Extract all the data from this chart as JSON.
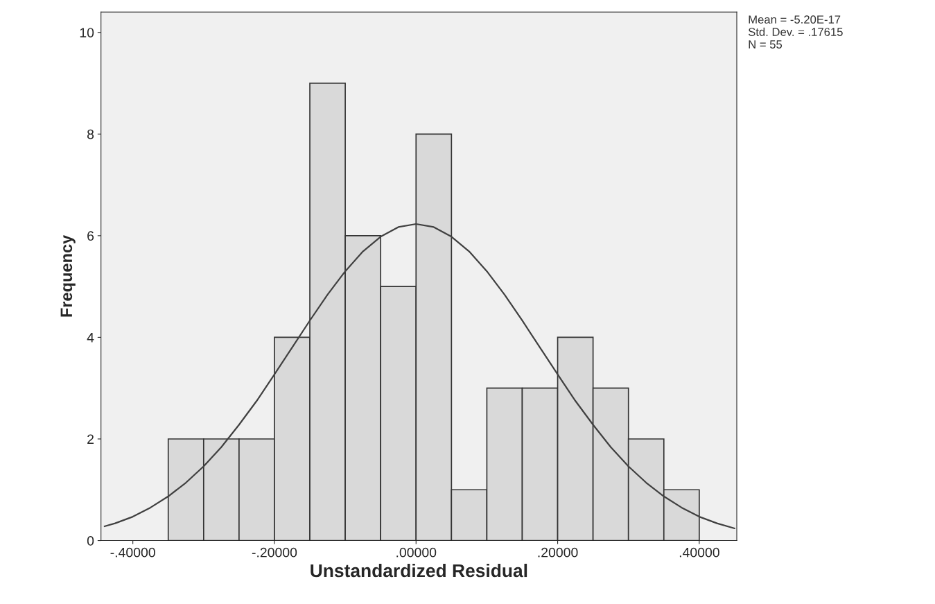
{
  "chart_data": {
    "type": "histogram",
    "xlabel": "Unstandardized Residual",
    "ylabel": "Frequency",
    "bins": [
      -0.35,
      -0.3,
      -0.25,
      -0.2,
      -0.15,
      -0.1,
      -0.05,
      0.0,
      0.05,
      0.1,
      0.15,
      0.2,
      0.25,
      0.3,
      0.35,
      0.4
    ],
    "values": [
      2,
      2,
      2,
      4,
      9,
      6,
      5,
      8,
      1,
      3,
      3,
      4,
      3,
      2,
      1
    ],
    "color": "#d9d9d9",
    "series": [
      {
        "type": "line",
        "color": "#404040",
        "x": [
          -0.44,
          -0.425,
          -0.4,
          -0.375,
          -0.35,
          -0.325,
          -0.3,
          -0.275,
          -0.25,
          -0.225,
          -0.2,
          -0.175,
          -0.15,
          -0.125,
          -0.1,
          -0.075,
          -0.05,
          -0.025,
          0.0,
          0.025,
          0.05,
          0.075,
          0.1,
          0.125,
          0.15,
          0.175,
          0.2,
          0.225,
          0.25,
          0.275,
          0.3,
          0.325,
          0.35,
          0.375,
          0.4,
          0.425,
          0.45
        ],
        "values": [
          0.28,
          0.34,
          0.47,
          0.65,
          0.87,
          1.14,
          1.46,
          1.84,
          2.28,
          2.75,
          3.27,
          3.8,
          4.33,
          4.84,
          5.3,
          5.69,
          5.98,
          6.17,
          6.23,
          6.17,
          5.98,
          5.69,
          5.3,
          4.84,
          4.33,
          3.8,
          3.27,
          2.75,
          2.28,
          1.84,
          1.46,
          1.14,
          0.87,
          0.65,
          0.47,
          0.34,
          0.24
        ]
      }
    ],
    "xlim": [
      -0.445,
      0.453
    ],
    "ylim": [
      0,
      10.4
    ],
    "xticks": [
      {
        "value": -0.4,
        "label": "-.40000"
      },
      {
        "value": -0.2,
        "label": "-.20000"
      },
      {
        "value": 0.0,
        "label": ".00000"
      },
      {
        "value": 0.2,
        "label": ".20000"
      },
      {
        "value": 0.4,
        "label": ".40000"
      }
    ],
    "yticks": [
      0,
      2,
      4,
      6,
      8,
      10
    ],
    "annotations": [
      "Mean = -5.20E-17\nStd. Dev. = .17615\nN = 55"
    ]
  }
}
